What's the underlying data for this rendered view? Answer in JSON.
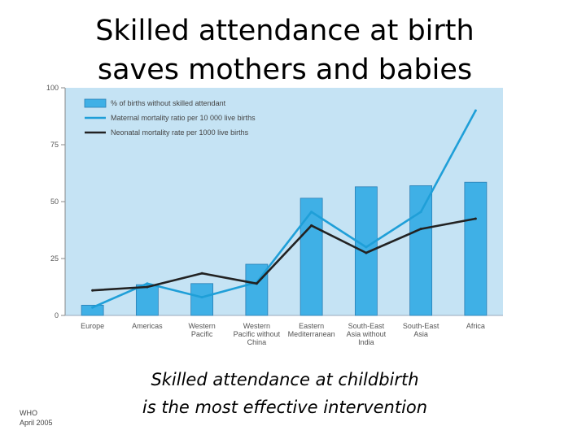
{
  "slide": {
    "title_line1": "Skilled attendance at birth",
    "title_line2": "saves mothers and babies",
    "subtitle_line1": "Skilled attendance at childbirth",
    "subtitle_line2": "is the most effective intervention",
    "credit_line1": "WHO",
    "credit_line2": "April 2005"
  },
  "chart_data": {
    "type": "bar",
    "categories": [
      [
        "Europe"
      ],
      [
        "Americas"
      ],
      [
        "Western",
        "Pacific"
      ],
      [
        "Western",
        "Pacific without",
        "China"
      ],
      [
        "Eastern",
        "Mediterranean"
      ],
      [
        "South-East",
        "Asia without",
        "India"
      ],
      [
        "South-East",
        "Asia"
      ],
      [
        "Africa"
      ]
    ],
    "ylim": [
      0,
      100
    ],
    "yticks": [
      0,
      25,
      50,
      75,
      100
    ],
    "grid": false,
    "legend_position": "top-left",
    "background": "#c5e3f4",
    "series": [
      {
        "name": "% of births without skilled attendant",
        "kind": "bar",
        "color": "#3fb0e6",
        "values": [
          4.5,
          13.5,
          14,
          22.5,
          51.5,
          56.5,
          57,
          58.5
        ]
      },
      {
        "name": "Maternal mortality ratio per 10 000 live births",
        "kind": "line",
        "color": "#1f9fd8",
        "values": [
          3.5,
          14,
          8,
          14.5,
          45.5,
          30,
          45.5,
          90
        ]
      },
      {
        "name": "Neonatal mortality rate per 1000 live births",
        "kind": "line",
        "color": "#222222",
        "values": [
          11,
          12.5,
          18.5,
          14,
          39.5,
          27.5,
          38,
          42.5
        ]
      }
    ]
  }
}
